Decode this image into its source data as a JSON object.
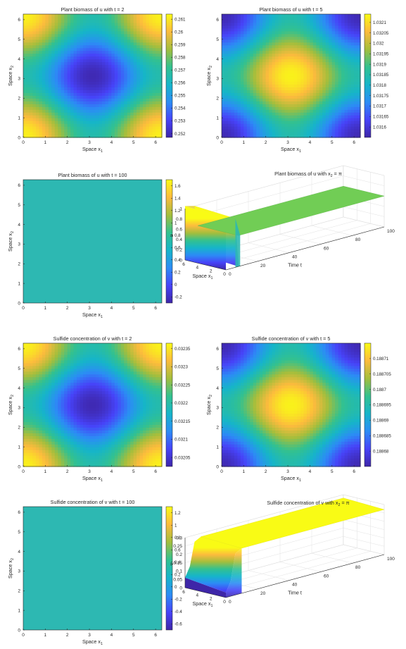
{
  "colormap": [
    "#3e26a8",
    "#4743f8",
    "#2c8cf5",
    "#16b5c9",
    "#33c18f",
    "#a4be3c",
    "#fcbb3d",
    "#f9fb15"
  ],
  "flat_color": "#2db8b2",
  "surface_u_color": "#71cd55",
  "chart_data": [
    {
      "id": "p1",
      "type": "heatmap",
      "title": "Plant biomass of u with t = 2",
      "xlabel": "Space x",
      "xlabel_sub": "1",
      "ylabel": "Space x",
      "ylabel_sub": "2",
      "xlim": [
        0,
        6.283
      ],
      "ylim": [
        0,
        6.283
      ],
      "xticks": [
        "0",
        "1",
        "2",
        "3",
        "4",
        "5",
        "6"
      ],
      "yticks": [
        "0",
        "1",
        "2",
        "3",
        "4",
        "5",
        "6"
      ],
      "pattern": "cos-sum",
      "center": "min",
      "colorbar": {
        "min": 0.2517,
        "max": 0.2614,
        "ticks": [
          0.252,
          0.253,
          0.254,
          0.255,
          0.256,
          0.257,
          0.258,
          0.259,
          0.26,
          0.261
        ],
        "labels": [
          "0.252",
          "0.253",
          "0.254",
          "0.255",
          "0.256",
          "0.257",
          "0.258",
          "0.259",
          "0.26",
          "0.261"
        ]
      }
    },
    {
      "id": "p2",
      "type": "heatmap",
      "title": "Plant biomass of u with t = 5",
      "xlabel": "Space x",
      "xlabel_sub": "1",
      "ylabel": "Space x",
      "ylabel_sub": "2",
      "xlim": [
        0,
        6.283
      ],
      "ylim": [
        0,
        6.283
      ],
      "xticks": [
        "0",
        "1",
        "2",
        "3",
        "4",
        "5",
        "6"
      ],
      "yticks": [
        "0",
        "1",
        "2",
        "3",
        "4",
        "5",
        "6"
      ],
      "pattern": "cos-sum",
      "center": "max",
      "colorbar": {
        "min": 1.03155,
        "max": 1.03214,
        "ticks": [
          1.0316,
          1.03165,
          1.0317,
          1.03175,
          1.0318,
          1.03185,
          1.0319,
          1.03195,
          1.032,
          1.03205,
          1.0321
        ],
        "labels": [
          "1.0316",
          "1.03165",
          "1.0317",
          "1.03175",
          "1.0318",
          "1.03185",
          "1.0319",
          "1.03195",
          "1.032",
          "1.03205",
          "1.0321"
        ]
      }
    },
    {
      "id": "p3",
      "type": "heatmap",
      "title": "Plant biomass of u with t = 100",
      "xlabel": "Space x",
      "xlabel_sub": "1",
      "ylabel": "Space x",
      "ylabel_sub": "2",
      "xlim": [
        0,
        6.283
      ],
      "ylim": [
        0,
        6.283
      ],
      "xticks": [
        "0",
        "1",
        "2",
        "3",
        "4",
        "5",
        "6"
      ],
      "yticks": [
        "0",
        "1",
        "2",
        "3",
        "4",
        "5",
        "6"
      ],
      "pattern": "flat",
      "colorbar": {
        "min": -0.3,
        "max": 1.7,
        "ticks": [
          -0.2,
          0,
          0.2,
          0.4,
          0.6,
          0.8,
          1,
          1.2,
          1.4,
          1.6
        ],
        "labels": [
          "-0.2",
          "0",
          "0.2",
          "0.4",
          "0.6",
          "0.8",
          "1",
          "1.2",
          "1.4",
          "1.6"
        ]
      }
    },
    {
      "id": "p4",
      "type": "surface3d",
      "variant": "u",
      "title": "Plant biomass of u with x",
      "title_sub": "2",
      "title_tail": " = π",
      "xlabel": "Space x",
      "xlabel_sub": "1",
      "tlabel": "Time t",
      "zlabel": "u",
      "zticks": [
        "0",
        "0.2",
        "0.4",
        "0.6",
        "0.8",
        "1"
      ],
      "xticks": [
        "0",
        "2",
        "4",
        "6"
      ],
      "tticks": [
        "0",
        "20",
        "40",
        "60",
        "80",
        "100"
      ]
    },
    {
      "id": "p5",
      "type": "heatmap",
      "title": "Sulfide concentration of v with t = 2",
      "xlabel": "Space x",
      "xlabel_sub": "1",
      "ylabel": "Space x",
      "ylabel_sub": "2",
      "xlim": [
        0,
        6.283
      ],
      "ylim": [
        0,
        6.283
      ],
      "xticks": [
        "0",
        "1",
        "2",
        "3",
        "4",
        "5",
        "6"
      ],
      "yticks": [
        "0",
        "1",
        "2",
        "3",
        "4",
        "5",
        "6"
      ],
      "pattern": "cos-sum",
      "center": "min",
      "colorbar": {
        "min": 0.032025,
        "max": 0.032365,
        "ticks": [
          0.03205,
          0.0321,
          0.03215,
          0.0322,
          0.03225,
          0.0323,
          0.03235
        ],
        "labels": [
          "0.03205",
          "0.0321",
          "0.03215",
          "0.0322",
          "0.03225",
          "0.0323",
          "0.03235"
        ]
      }
    },
    {
      "id": "p6",
      "type": "heatmap",
      "title": "Sulfide concentration of v with t = 5",
      "xlabel": "Space x",
      "xlabel_sub": "1",
      "ylabel": "Space x",
      "ylabel_sub": "2",
      "xlim": [
        0,
        6.283
      ],
      "ylim": [
        0,
        6.283
      ],
      "xticks": [
        "0",
        "1",
        "2",
        "3",
        "4",
        "5",
        "6"
      ],
      "yticks": [
        "0",
        "1",
        "2",
        "3",
        "4",
        "5",
        "6"
      ],
      "pattern": "cos-sum",
      "center": "max",
      "colorbar": {
        "min": 0.188675,
        "max": 0.188715,
        "ticks": [
          0.18868,
          0.188685,
          0.18869,
          0.188695,
          0.1887,
          0.188705,
          0.18871
        ],
        "labels": [
          "0.18868",
          "0.188685",
          "0.18869",
          "0.188695",
          "0.1887",
          "0.188705",
          "0.18871"
        ]
      }
    },
    {
      "id": "p7",
      "type": "heatmap",
      "title": "Sulfide concentration of v with t = 100",
      "xlabel": "Space x",
      "xlabel_sub": "1",
      "ylabel": "Space x",
      "ylabel_sub": "2",
      "xlim": [
        0,
        6.283
      ],
      "ylim": [
        0,
        6.283
      ],
      "xticks": [
        "0",
        "1",
        "2",
        "3",
        "4",
        "5",
        "6"
      ],
      "yticks": [
        "0",
        "1",
        "2",
        "3",
        "4",
        "5",
        "6"
      ],
      "pattern": "flat",
      "colorbar": {
        "min": -0.7,
        "max": 1.3,
        "ticks": [
          -0.6,
          -0.4,
          -0.2,
          0,
          0.2,
          0.4,
          0.6,
          0.8,
          1,
          1.2
        ],
        "labels": [
          "-0.6",
          "-0.4",
          "-0.2",
          "0",
          "0.2",
          "0.4",
          "0.6",
          "0.8",
          "1",
          "1.2"
        ]
      }
    },
    {
      "id": "p8",
      "type": "surface3d",
      "variant": "v",
      "title": "Sulfide concentration of v with x",
      "title_sub": "2",
      "title_tail": " = π",
      "xlabel": "Space x",
      "xlabel_sub": "1",
      "tlabel": "Time t",
      "zlabel": "v",
      "zticks": [
        "0",
        "0.05",
        "0.1",
        "0.15",
        "0.2",
        "0.25",
        "0.3"
      ],
      "xticks": [
        "0",
        "2",
        "4",
        "6"
      ],
      "tticks": [
        "0",
        "20",
        "40",
        "60",
        "80",
        "100"
      ]
    }
  ]
}
